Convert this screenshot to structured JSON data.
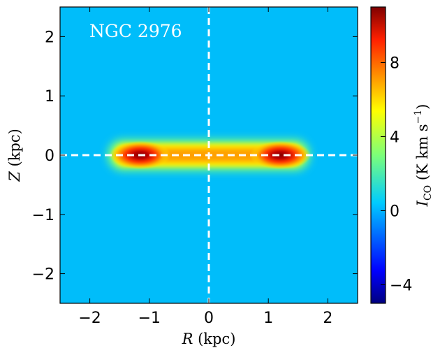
{
  "chart_data": {
    "type": "heatmap",
    "annotation": "NGC 2976",
    "xlabel": {
      "symbol": "R",
      "unit": "(kpc)"
    },
    "ylabel": {
      "symbol": "Z",
      "unit": "(kpc)"
    },
    "xlim": [
      -2.5,
      2.5
    ],
    "ylim": [
      -2.5,
      2.5
    ],
    "xticks": [
      -2,
      -1,
      0,
      1,
      2
    ],
    "xtick_labels": [
      "−2",
      "−1",
      "0",
      "1",
      "2"
    ],
    "yticks": [
      2,
      1,
      0,
      -1,
      -2
    ],
    "ytick_labels": [
      "2",
      "1",
      "0",
      "−1",
      "−2"
    ],
    "colorbar": {
      "label": {
        "symbol": "I",
        "sub": "CO",
        "unit_open": "(K km s",
        "unit_exp": "−1",
        "unit_close": ")"
      },
      "range": [
        -5,
        11
      ],
      "ticks": [
        8,
        4,
        0,
        -4
      ],
      "tick_labels": [
        "8",
        "4",
        "0",
        "−4"
      ],
      "colormap": "jet"
    },
    "background_level": 0,
    "emission": {
      "peaks": [
        {
          "r": -1.15,
          "z": 0.0,
          "value": 11
        },
        {
          "r": 1.2,
          "z": 0.0,
          "value": 11
        }
      ],
      "center_value": 7,
      "extent_r": [
        -1.7,
        1.7
      ],
      "thickness_z": 0.25
    },
    "reference_lines": [
      {
        "axis": "x",
        "value": 0,
        "style": "dashed",
        "color": "#ffffff"
      },
      {
        "axis": "y",
        "value": 0,
        "style": "dashed",
        "color": "#ffffff"
      }
    ]
  }
}
